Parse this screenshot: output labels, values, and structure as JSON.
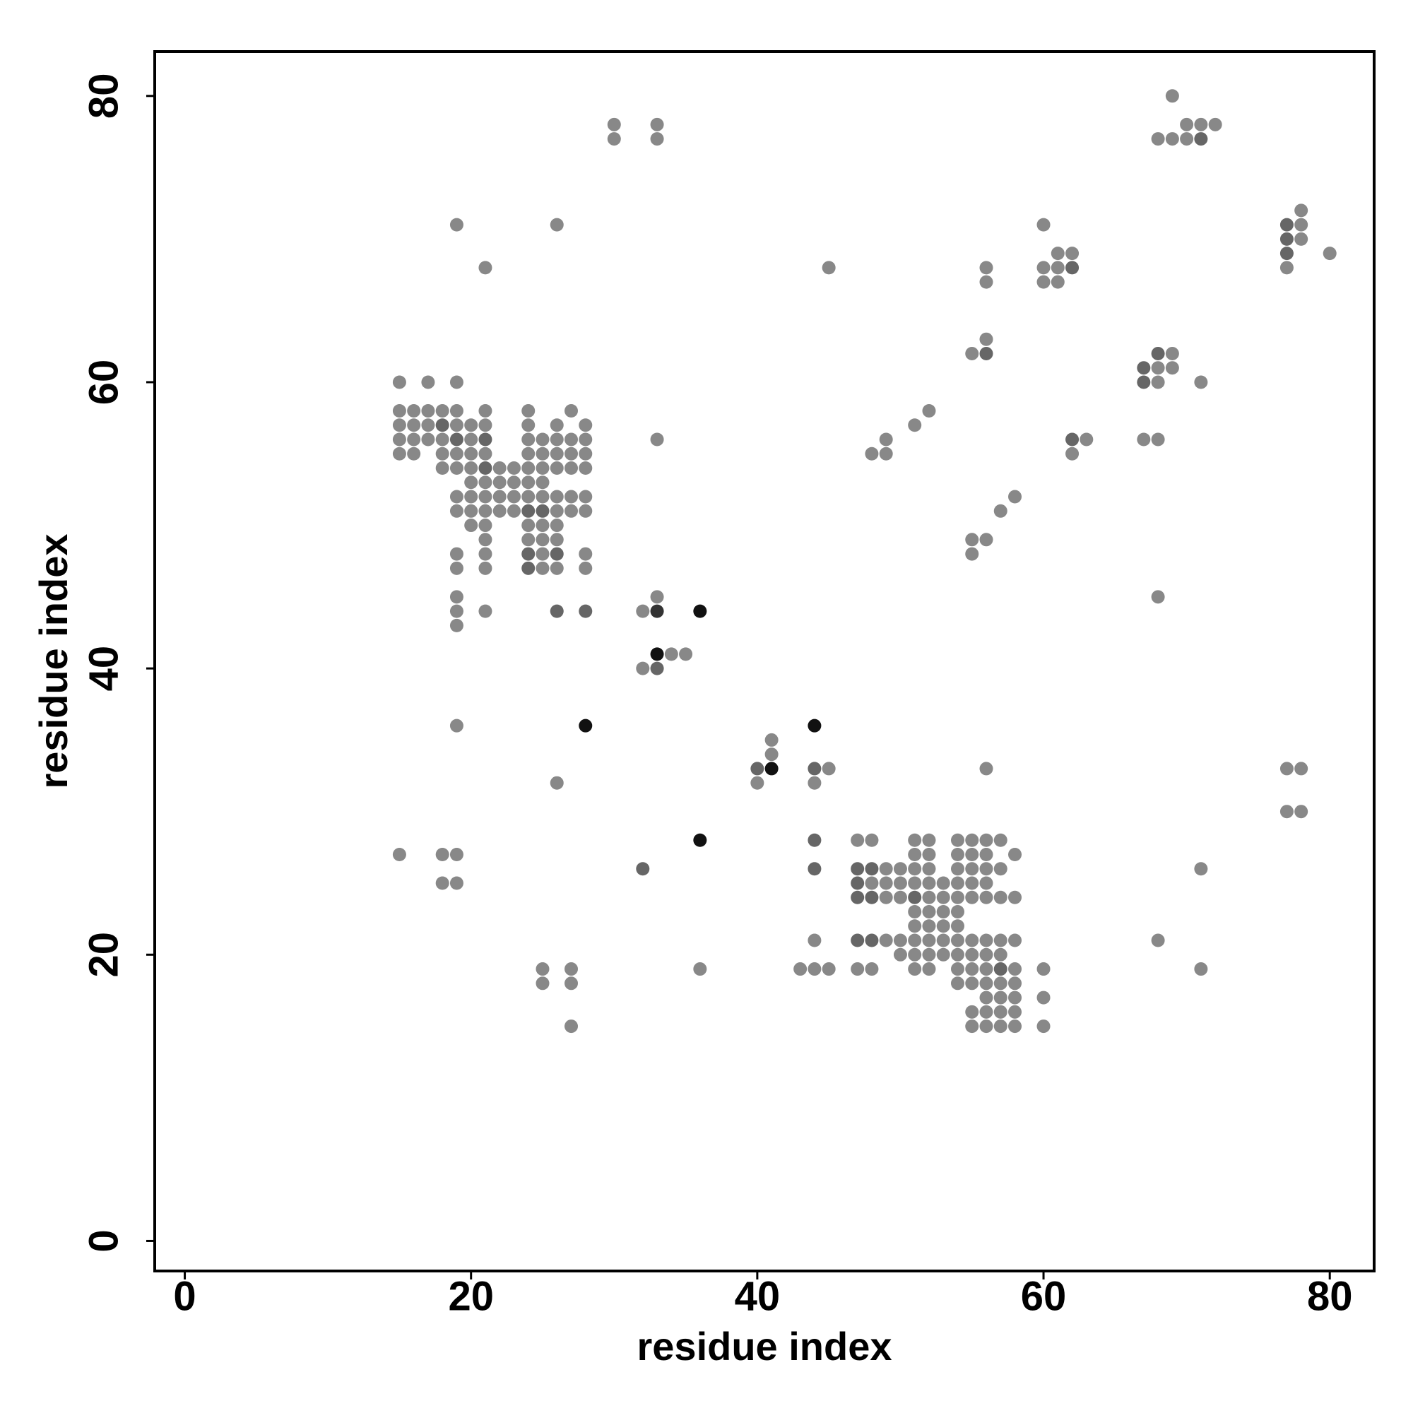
{
  "chart_data": {
    "type": "scatter",
    "xlabel": "residue index",
    "ylabel": "residue index",
    "xlim": [
      -2.1,
      83.1
    ],
    "ylim": [
      -2.1,
      83.1
    ],
    "xticks": [
      0,
      20,
      40,
      60,
      80
    ],
    "yticks": [
      0,
      20,
      40,
      60,
      80
    ],
    "series": [
      {
        "color": "#888888",
        "x": [
          69,
          30,
          33,
          70,
          71,
          72,
          30,
          33,
          68,
          69,
          70,
          78,
          19,
          26,
          60,
          78,
          78,
          61,
          62,
          80,
          21,
          45,
          56,
          60,
          61,
          77,
          56,
          60,
          61,
          56,
          55,
          69,
          68,
          69,
          15,
          17,
          19,
          68,
          71,
          15,
          16,
          17,
          18,
          19,
          21,
          24,
          27,
          52,
          15,
          16,
          17,
          19,
          20,
          21,
          24,
          26,
          28,
          51,
          15,
          16,
          17,
          18,
          20,
          24,
          25,
          26,
          27,
          28,
          33,
          49,
          63,
          67,
          68,
          15,
          16,
          18,
          19,
          20,
          21,
          24,
          25,
          26,
          27,
          28,
          48,
          49,
          62,
          18,
          19,
          20,
          22,
          23,
          24,
          25,
          26,
          27,
          28,
          20,
          21,
          22,
          23,
          24,
          25,
          19,
          20,
          21,
          22,
          23,
          24,
          25,
          26,
          27,
          28,
          58,
          19,
          20,
          21,
          22,
          23,
          26,
          27,
          28,
          57,
          20,
          21,
          24,
          25,
          26,
          21,
          24,
          25,
          26,
          55,
          56,
          19,
          21,
          25,
          28,
          55,
          19,
          21,
          25,
          26,
          28,
          19,
          33,
          68,
          19,
          21,
          32,
          19,
          34,
          35,
          32,
          19,
          41,
          41,
          45,
          56,
          77,
          78,
          26,
          40,
          44,
          77,
          78,
          47,
          48,
          51,
          52,
          54,
          55,
          56,
          57,
          15,
          18,
          19,
          51,
          52,
          54,
          55,
          56,
          58,
          49,
          50,
          51,
          52,
          54,
          55,
          56,
          57,
          71,
          18,
          19,
          48,
          49,
          50,
          51,
          52,
          53,
          54,
          55,
          56,
          49,
          50,
          52,
          53,
          54,
          55,
          56,
          57,
          58,
          51,
          52,
          53,
          54,
          51,
          52,
          53,
          54,
          44,
          49,
          50,
          51,
          52,
          53,
          54,
          55,
          56,
          57,
          58,
          68,
          50,
          51,
          52,
          53,
          54,
          55,
          56,
          57,
          25,
          27,
          36,
          43,
          44,
          45,
          47,
          48,
          51,
          52,
          54,
          55,
          56,
          58,
          60,
          71,
          25,
          27,
          54,
          55,
          56,
          57,
          58,
          56,
          57,
          58,
          60,
          55,
          56,
          57,
          58,
          27,
          55,
          56,
          57,
          58,
          60
        ],
        "y": [
          80,
          78,
          78,
          78,
          78,
          78,
          77,
          77,
          77,
          77,
          77,
          72,
          71,
          71,
          71,
          71,
          70,
          69,
          69,
          69,
          68,
          68,
          68,
          68,
          68,
          68,
          67,
          67,
          67,
          63,
          62,
          62,
          61,
          61,
          60,
          60,
          60,
          60,
          60,
          58,
          58,
          58,
          58,
          58,
          58,
          58,
          58,
          58,
          57,
          57,
          57,
          57,
          57,
          57,
          57,
          57,
          57,
          57,
          56,
          56,
          56,
          56,
          56,
          56,
          56,
          56,
          56,
          56,
          56,
          56,
          56,
          56,
          56,
          55,
          55,
          55,
          55,
          55,
          55,
          55,
          55,
          55,
          55,
          55,
          55,
          55,
          55,
          54,
          54,
          54,
          54,
          54,
          54,
          54,
          54,
          54,
          54,
          53,
          53,
          53,
          53,
          53,
          53,
          52,
          52,
          52,
          52,
          52,
          52,
          52,
          52,
          52,
          52,
          52,
          51,
          51,
          51,
          51,
          51,
          51,
          51,
          51,
          51,
          50,
          50,
          50,
          50,
          50,
          49,
          49,
          49,
          49,
          49,
          49,
          48,
          48,
          48,
          48,
          48,
          47,
          47,
          47,
          47,
          47,
          45,
          45,
          45,
          44,
          44,
          44,
          43,
          41,
          41,
          40,
          36,
          35,
          34,
          33,
          33,
          33,
          33,
          32,
          32,
          32,
          30,
          30,
          28,
          28,
          28,
          28,
          28,
          28,
          28,
          28,
          27,
          27,
          27,
          27,
          27,
          27,
          27,
          27,
          27,
          26,
          26,
          26,
          26,
          26,
          26,
          26,
          26,
          26,
          25,
          25,
          25,
          25,
          25,
          25,
          25,
          25,
          25,
          25,
          25,
          24,
          24,
          24,
          24,
          24,
          24,
          24,
          24,
          24,
          23,
          23,
          23,
          23,
          22,
          22,
          22,
          22,
          21,
          21,
          21,
          21,
          21,
          21,
          21,
          21,
          21,
          21,
          21,
          21,
          20,
          20,
          20,
          20,
          20,
          20,
          20,
          20,
          19,
          19,
          19,
          19,
          19,
          19,
          19,
          19,
          19,
          19,
          19,
          19,
          19,
          19,
          19,
          19,
          18,
          18,
          18,
          18,
          18,
          18,
          18,
          17,
          17,
          17,
          17,
          16,
          16,
          16,
          16,
          15,
          15,
          15,
          15,
          15,
          15
        ]
      },
      {
        "color": "#666666",
        "x": [
          71,
          77,
          77,
          77,
          62,
          56,
          68,
          62,
          67,
          67,
          33,
          40,
          44,
          44,
          44,
          32,
          24,
          25,
          24,
          24,
          26,
          28,
          26,
          21,
          21,
          19,
          18,
          47,
          48,
          51,
          47,
          48,
          47,
          47,
          48,
          57
        ],
        "y": [
          77,
          71,
          70,
          69,
          68,
          62,
          62,
          56,
          60,
          61,
          40,
          33,
          28,
          33,
          26,
          26,
          51,
          51,
          47,
          48,
          48,
          44,
          44,
          54,
          56,
          56,
          57,
          24,
          24,
          24,
          25,
          26,
          26,
          21,
          21,
          19
        ]
      },
      {
        "color": "#333333",
        "x": [
          33
        ],
        "y": [
          44
        ]
      },
      {
        "color": "#111111",
        "x": [
          36,
          33,
          28,
          44,
          36,
          41
        ],
        "y": [
          44,
          41,
          36,
          36,
          28,
          33
        ]
      }
    ]
  }
}
